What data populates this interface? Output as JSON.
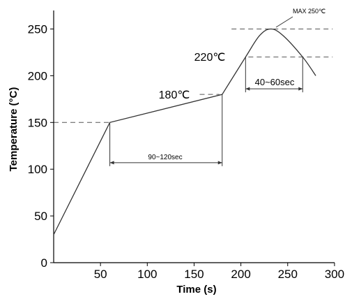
{
  "chart_data": {
    "type": "line",
    "title": "",
    "xlabel": "Time (s)",
    "ylabel": "Temperature (°C)",
    "xlim": [
      0,
      300
    ],
    "ylim": [
      0,
      260
    ],
    "x_ticks": [
      50,
      100,
      150,
      200,
      250,
      300
    ],
    "y_ticks": [
      0,
      50,
      100,
      150,
      200,
      250
    ],
    "grid": false,
    "series": [
      {
        "x": [
          0,
          60,
          180,
          205,
          220,
          232,
          245,
          266,
          280
        ],
        "y": [
          30,
          150,
          180,
          220,
          243,
          250,
          243,
          220,
          200
        ]
      }
    ],
    "annotations": {
      "max_label": "MAX 250℃",
      "reflow_label": "220℃",
      "preheat_end_label": "180℃",
      "preheat_duration_label": "90~120sec",
      "reflow_duration_label": "40~60sec"
    },
    "reference_lines": [
      {
        "y": 250,
        "x_from": 190,
        "x_to": 298
      },
      {
        "y": 220,
        "x_from": 208,
        "x_to": 298
      },
      {
        "y": 180,
        "x_from": 156,
        "x_to": 177
      },
      {
        "y": 150,
        "x_from": 0,
        "x_to": 60
      }
    ],
    "intervals": [
      {
        "x_from": 60,
        "x_to": 180,
        "y": 107
      },
      {
        "x_from": 205,
        "x_to": 266,
        "y": 186
      }
    ]
  }
}
